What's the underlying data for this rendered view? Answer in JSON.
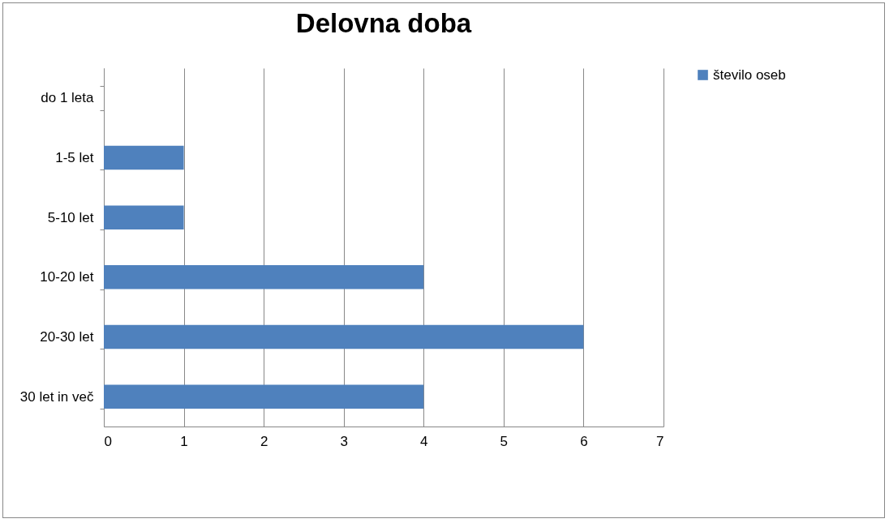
{
  "chart_data": {
    "type": "bar",
    "orientation": "horizontal",
    "title": "Delovna doba",
    "categories": [
      "do 1 leta",
      "1-5 let",
      "5-10 let",
      "10-20 let",
      "20-30 let",
      "30 let in več"
    ],
    "series": [
      {
        "name": "število oseb",
        "color": "#4f81bd",
        "values": [
          0,
          1,
          1,
          4,
          6,
          4
        ]
      }
    ],
    "xlim": [
      0,
      7
    ],
    "xticks": [
      0,
      1,
      2,
      3,
      4,
      5,
      6,
      7
    ],
    "grid": "x",
    "legend": "right"
  }
}
